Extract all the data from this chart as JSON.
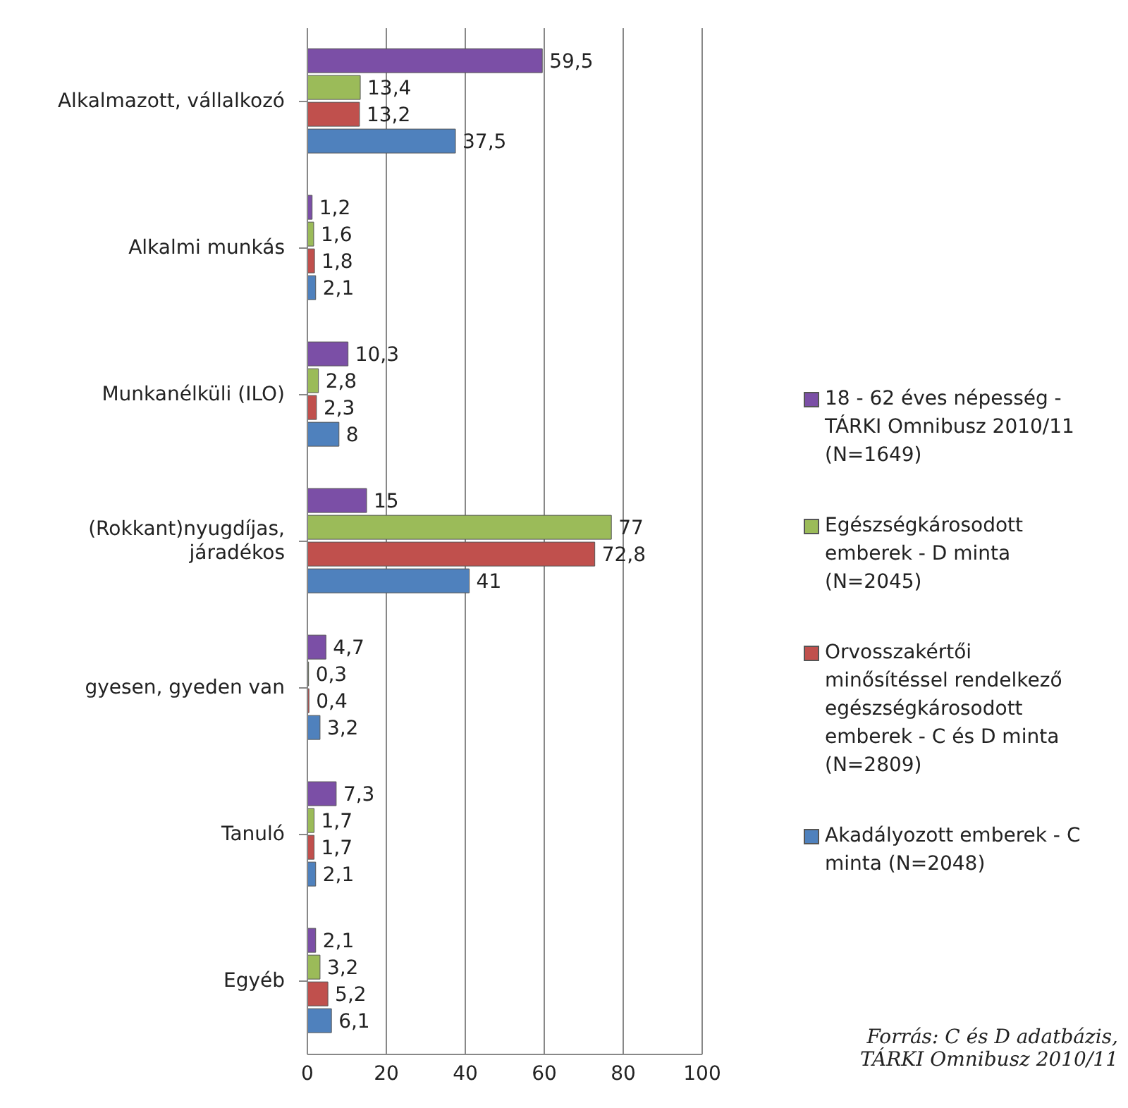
{
  "chart_data": {
    "type": "bar",
    "orientation": "horizontal",
    "categories": [
      "Alkalmazott, vállalkozó",
      "Alkalmi munkás",
      "Munkanélküli (ILO)",
      "(Rokkant)nyugdíjas, járadékos",
      "gyesen, gyeden van",
      "Tanuló",
      "Egyéb"
    ],
    "series": [
      {
        "name": "18 - 62 éves népesség - TÁRKI Omnibusz 2010/11 (N=1649)",
        "color": "#7b4fa6",
        "values": [
          59.5,
          1.2,
          10.3,
          15,
          4.7,
          7.3,
          2.1
        ],
        "value_labels": [
          "59,5",
          "1,2",
          "10,3",
          "15",
          "4,7",
          "7,3",
          "2,1"
        ]
      },
      {
        "name": "Egészségkárosodott emberek - D minta (N=2045)",
        "color": "#9bbb59",
        "values": [
          13.4,
          1.6,
          2.8,
          77,
          0.3,
          1.7,
          3.2
        ],
        "value_labels": [
          "13,4",
          "1,6",
          "2,8",
          "77",
          "0,3",
          "1,7",
          "3,2"
        ]
      },
      {
        "name": "Orvosszakértői minősítéssel rendelkező egészségkárosodott emberek - C és D minta (N=2809)",
        "color": "#c0504d",
        "values": [
          13.2,
          1.8,
          2.3,
          72.8,
          0.4,
          1.7,
          5.2
        ],
        "value_labels": [
          "13,2",
          "1,8",
          "2,3",
          "72,8",
          "0,4",
          "1,7",
          "5,2"
        ]
      },
      {
        "name": "Akadályozott emberek - C minta (N=2048)",
        "color": "#4f81bd",
        "values": [
          37.5,
          2.1,
          8,
          41,
          3.2,
          2.1,
          6.1
        ],
        "value_labels": [
          "37,5",
          "2,1",
          "8",
          "41",
          "3,2",
          "2,1",
          "6,1"
        ]
      }
    ],
    "xlim": [
      0,
      100
    ],
    "xticks": [
      0,
      20,
      40,
      60,
      80,
      100
    ],
    "grid": "x",
    "legend": "right",
    "annotations": [
      "Forrás: C és D adatbázis, TÁRKI Omnibusz 2010/11"
    ]
  }
}
